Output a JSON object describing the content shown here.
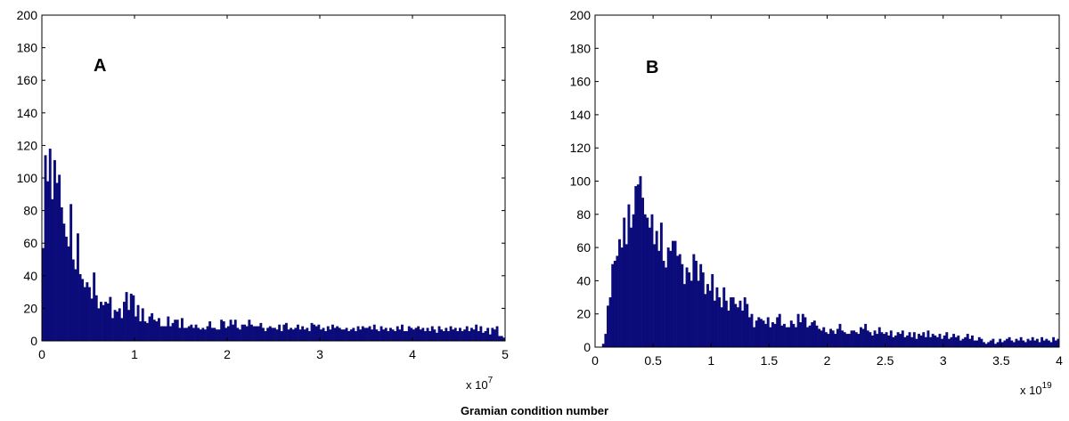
{
  "chart_data": [
    {
      "type": "bar",
      "panel_label": "A",
      "xlim": [
        0,
        5
      ],
      "ylim": [
        0,
        200
      ],
      "xticks": [
        "0",
        "1",
        "2",
        "3",
        "4",
        "5"
      ],
      "yticks": [
        "0",
        "20",
        "40",
        "60",
        "80",
        "100",
        "120",
        "140",
        "160",
        "180",
        "200"
      ],
      "x_multiplier_base": "x 10",
      "x_multiplier_exp": "7",
      "bin_start": 0,
      "bin_width": 0.025,
      "bar_color": "#0b0b7a",
      "values": [
        57,
        114,
        98,
        118,
        87,
        111,
        97,
        102,
        82,
        72,
        64,
        58,
        84,
        50,
        44,
        66,
        41,
        38,
        33,
        36,
        33,
        26,
        42,
        28,
        20,
        24,
        22,
        24,
        23,
        27,
        14,
        19,
        18,
        20,
        14,
        24,
        30,
        19,
        29,
        28,
        15,
        22,
        12,
        20,
        12,
        11,
        15,
        17,
        13,
        12,
        14,
        9,
        9,
        9,
        15,
        9,
        11,
        13,
        13,
        8,
        14,
        8,
        8,
        9,
        10,
        8,
        10,
        8,
        7,
        8,
        7,
        9,
        12,
        8,
        8,
        7,
        7,
        13,
        12,
        8,
        9,
        13,
        10,
        13,
        8,
        7,
        10,
        10,
        9,
        13,
        10,
        9,
        9,
        9,
        11,
        8,
        6,
        8,
        9,
        8,
        8,
        7,
        10,
        6,
        10,
        11,
        7,
        8,
        7,
        8,
        10,
        7,
        9,
        7,
        8,
        6,
        11,
        10,
        9,
        10,
        7,
        8,
        6,
        9,
        7,
        10,
        8,
        9,
        8,
        7,
        7,
        8,
        6,
        7,
        8,
        6,
        9,
        7,
        9,
        8,
        8,
        9,
        7,
        10,
        7,
        6,
        9,
        7,
        8,
        6,
        8,
        7,
        6,
        9,
        7,
        10,
        6,
        6,
        9,
        8,
        7,
        8,
        9,
        7,
        8,
        6,
        8,
        6,
        9,
        7,
        5,
        9,
        7,
        6,
        8,
        6,
        9,
        7,
        8,
        6,
        8,
        6,
        7,
        9,
        6,
        8,
        7,
        10,
        6,
        9,
        5,
        6,
        8,
        4,
        8,
        7,
        9,
        3,
        3,
        2
      ]
    },
    {
      "type": "bar",
      "panel_label": "B",
      "xlim": [
        0,
        4
      ],
      "ylim": [
        0,
        200
      ],
      "xticks": [
        "0",
        "0.5",
        "1",
        "1.5",
        "2",
        "2.5",
        "3",
        "3.5",
        "4"
      ],
      "yticks": [
        "0",
        "20",
        "40",
        "60",
        "80",
        "100",
        "120",
        "140",
        "160",
        "180",
        "200"
      ],
      "x_multiplier_base": "x 10",
      "x_multiplier_exp": "19",
      "bin_start": 0,
      "bin_width": 0.02,
      "bar_color": "#0b0b7a",
      "values": [
        0,
        0,
        0,
        2,
        8,
        25,
        30,
        50,
        52,
        55,
        65,
        60,
        78,
        62,
        86,
        72,
        80,
        97,
        98,
        103,
        90,
        80,
        78,
        72,
        80,
        62,
        70,
        58,
        75,
        52,
        48,
        60,
        58,
        64,
        64,
        55,
        56,
        50,
        38,
        48,
        45,
        40,
        56,
        52,
        40,
        50,
        45,
        32,
        38,
        34,
        44,
        28,
        36,
        30,
        24,
        36,
        28,
        22,
        30,
        30,
        26,
        24,
        28,
        22,
        30,
        26,
        18,
        20,
        12,
        16,
        18,
        17,
        16,
        14,
        18,
        12,
        15,
        14,
        18,
        20,
        13,
        14,
        12,
        12,
        16,
        14,
        12,
        20,
        15,
        20,
        18,
        12,
        13,
        15,
        16,
        13,
        11,
        10,
        12,
        9,
        8,
        11,
        10,
        8,
        11,
        14,
        10,
        9,
        8,
        8,
        10,
        10,
        9,
        8,
        12,
        11,
        14,
        10,
        9,
        7,
        10,
        8,
        12,
        9,
        8,
        9,
        7,
        10,
        6,
        7,
        9,
        8,
        10,
        6,
        7,
        9,
        6,
        9,
        5,
        8,
        7,
        9,
        6,
        10,
        6,
        8,
        7,
        6,
        8,
        5,
        7,
        9,
        5,
        6,
        8,
        6,
        7,
        4,
        5,
        6,
        8,
        5,
        7,
        4,
        4,
        6,
        5,
        3,
        2,
        3,
        4,
        5,
        2,
        3,
        5,
        3,
        4,
        5,
        6,
        4,
        3,
        5,
        4,
        6,
        4,
        3,
        5,
        4,
        6,
        4,
        5,
        3,
        6,
        4,
        5,
        4,
        3,
        6,
        4,
        5
      ]
    }
  ],
  "common_xlabel": "Gramian condition number"
}
